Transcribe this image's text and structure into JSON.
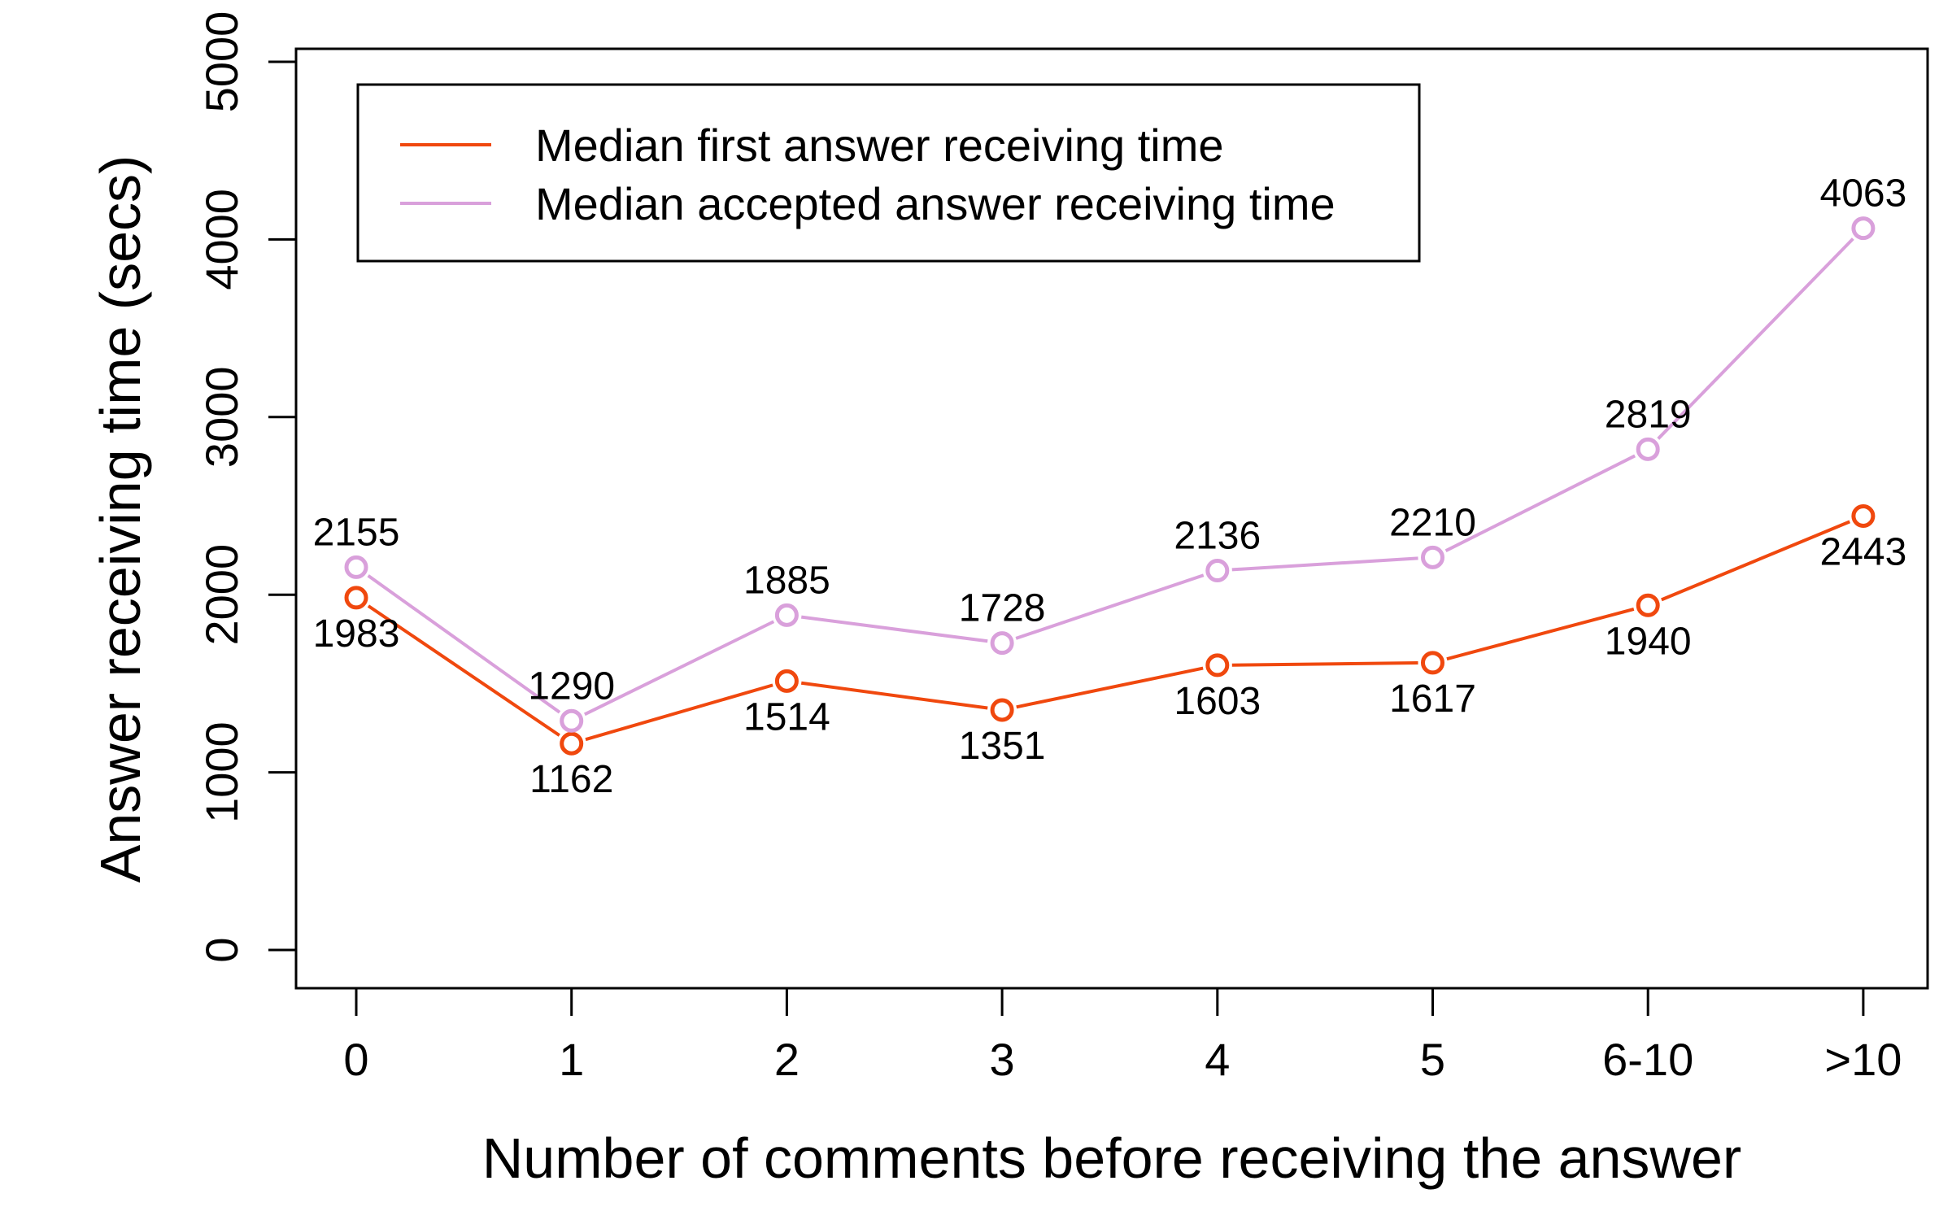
{
  "chart_data": {
    "type": "line",
    "xlabel": "Number of comments before receiving the answer",
    "ylabel": "Answer receiving time (secs)",
    "categories": [
      "0",
      "1",
      "2",
      "3",
      "4",
      "5",
      "6-10",
      ">10"
    ],
    "ylim": [
      0,
      5000
    ],
    "yticks": [
      0,
      1000,
      2000,
      3000,
      4000,
      5000
    ],
    "grid": false,
    "legend_position": "top-left",
    "series": [
      {
        "name": "Median first answer receiving time",
        "color": "#f0480e",
        "values": [
          1983,
          1162,
          1514,
          1351,
          1603,
          1617,
          1940,
          2443
        ],
        "label_side": "below"
      },
      {
        "name": "Median accepted answer receiving time",
        "color": "#d9a0db",
        "values": [
          2155,
          1290,
          1885,
          1728,
          2136,
          2210,
          2819,
          4063
        ],
        "label_side": "above"
      }
    ]
  }
}
